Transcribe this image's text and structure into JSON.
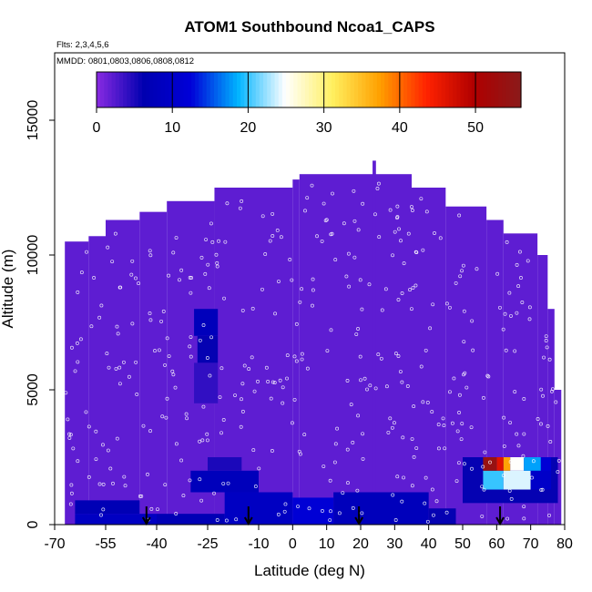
{
  "chart_data": {
    "type": "heatmap",
    "title": "ATOM1 Southbound Ncoa1_CAPS",
    "flights_label": "Flts: 2,3,4,5,6",
    "dates_label": "MMDD: 0801,0803,0806,0808,0812",
    "xlabel": "Latitude (deg N)",
    "ylabel": "Altitude (m)",
    "xlim": [
      -70,
      80
    ],
    "ylim": [
      0,
      17500
    ],
    "x_ticks": [
      -70,
      -55,
      -40,
      -25,
      -10,
      0,
      10,
      20,
      30,
      40,
      50,
      60,
      70,
      80
    ],
    "y_ticks": [
      0,
      5000,
      10000,
      15000
    ],
    "colorbar": {
      "min": 0,
      "max": 56,
      "ticks": [
        0,
        10,
        20,
        30,
        40,
        50
      ],
      "colors": [
        "#8a2be2",
        "#0000b0",
        "#0000d8",
        "#00b4ff",
        "#ffffff",
        "#fff060",
        "#ffa000",
        "#ff2200",
        "#b00000",
        "#8b1a1a"
      ]
    },
    "background_value": 2,
    "column_tops_m": [
      [
        -67,
        -60,
        10500
      ],
      [
        -60,
        -55,
        10700
      ],
      [
        -55,
        -45,
        11300
      ],
      [
        -45,
        -37,
        11600
      ],
      [
        -37,
        -23,
        12000
      ],
      [
        -23,
        0,
        12500
      ],
      [
        0,
        2,
        12800
      ],
      [
        2,
        20,
        13000
      ],
      [
        20,
        35,
        13000
      ],
      [
        35,
        45,
        12500
      ],
      [
        45,
        57,
        11800
      ],
      [
        57,
        62,
        11300
      ],
      [
        62,
        72,
        10800
      ],
      [
        72,
        75,
        10000
      ],
      [
        75,
        77,
        8000
      ],
      [
        77,
        79,
        5000
      ]
    ],
    "spike": [
      23.5,
      24.5,
      13500
    ],
    "patches": [
      {
        "lat": [
          -29,
          -22
        ],
        "alt": [
          7000,
          8000
        ],
        "value": 8
      },
      {
        "lat": [
          -28,
          -22
        ],
        "alt": [
          6000,
          7000
        ],
        "value": 6
      },
      {
        "lat": [
          -29,
          -22
        ],
        "alt": [
          4500,
          6000
        ],
        "value": 4
      },
      {
        "lat": [
          -64,
          -40
        ],
        "alt": [
          0,
          400
        ],
        "value": 9
      },
      {
        "lat": [
          -64,
          -45
        ],
        "alt": [
          400,
          900
        ],
        "value": 7
      },
      {
        "lat": [
          -40,
          -20
        ],
        "alt": [
          0,
          400
        ],
        "value": 7
      },
      {
        "lat": [
          -30,
          -10
        ],
        "alt": [
          1200,
          2000
        ],
        "value": 8
      },
      {
        "lat": [
          -25,
          -15
        ],
        "alt": [
          2000,
          2500
        ],
        "value": 5
      },
      {
        "lat": [
          -20,
          0
        ],
        "alt": [
          0,
          1200
        ],
        "value": 9
      },
      {
        "lat": [
          0,
          12
        ],
        "alt": [
          0,
          1000
        ],
        "value": 12
      },
      {
        "lat": [
          12,
          40
        ],
        "alt": [
          0,
          1200
        ],
        "value": 8
      },
      {
        "lat": [
          40,
          48
        ],
        "alt": [
          0,
          600
        ],
        "value": 6
      },
      {
        "lat": [
          50,
          78
        ],
        "alt": [
          800,
          2500
        ],
        "value": 6
      },
      {
        "lat": [
          56,
          62
        ],
        "alt": [
          1300,
          2000
        ],
        "value": 20
      },
      {
        "lat": [
          62,
          70
        ],
        "alt": [
          1300,
          2000
        ],
        "value": 24
      },
      {
        "lat": [
          70,
          76
        ],
        "alt": [
          1300,
          2000
        ],
        "value": 10
      },
      {
        "lat": [
          56,
          60
        ],
        "alt": [
          2000,
          2500
        ],
        "value": 54
      },
      {
        "lat": [
          60,
          62
        ],
        "alt": [
          2000,
          2500
        ],
        "value": 46
      },
      {
        "lat": [
          62,
          64
        ],
        "alt": [
          2000,
          2500
        ],
        "value": 37
      },
      {
        "lat": [
          64,
          68
        ],
        "alt": [
          2000,
          2500
        ],
        "value": 25
      },
      {
        "lat": [
          68,
          73
        ],
        "alt": [
          2000,
          2500
        ],
        "value": 18
      },
      {
        "lat": [
          73,
          76
        ],
        "alt": [
          2000,
          2500
        ],
        "value": 12
      }
    ],
    "markers_lat": [
      -43,
      -13,
      19.5,
      61
    ]
  }
}
